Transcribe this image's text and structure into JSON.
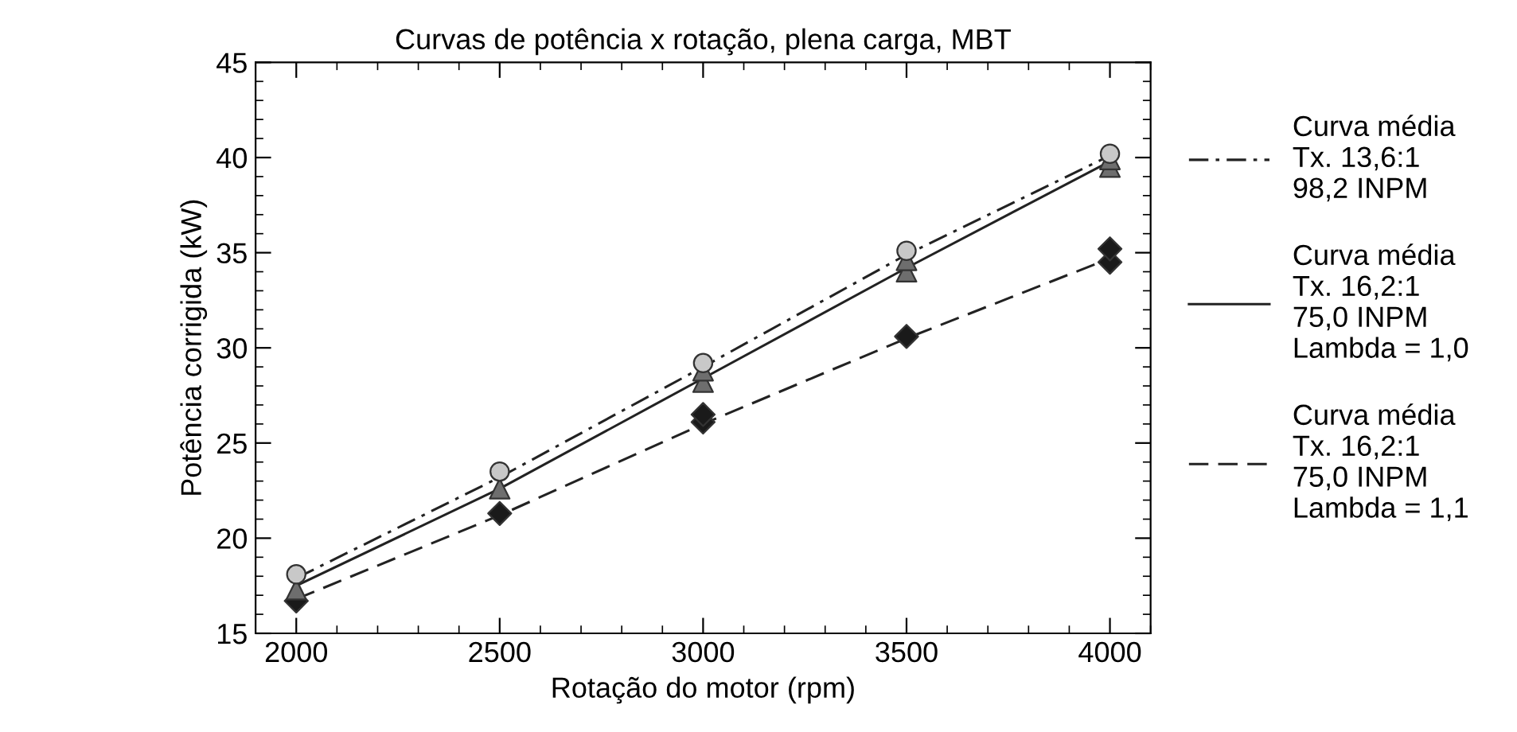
{
  "chart_data": {
    "type": "line",
    "title": "Curvas de potência x rotação, plena carga, MBT",
    "xlabel": "Rotação do motor (rpm)",
    "ylabel": "Potência corrigida (kW)",
    "xlim": [
      1900,
      4100
    ],
    "xticks": [
      2000,
      2500,
      3000,
      3500,
      4000
    ],
    "ylim": [
      15,
      45
    ],
    "yticks": [
      15,
      20,
      25,
      30,
      35,
      40,
      45
    ],
    "grid": false,
    "legend": "right",
    "series": [
      {
        "name": "Curva média\nTx. 13,6:1\n98,2 INPM",
        "color": "#222222",
        "line_style": "dashdot",
        "marker": "none",
        "x": [
          2000,
          2500,
          3000,
          3500,
          4000
        ],
        "values": [
          17.9,
          23.2,
          29.0,
          34.9,
          40.1
        ]
      },
      {
        "name": "Curva média\nTx. 16,2:1\n75,0 INPM\nLambda = 1,0",
        "color": "#222222",
        "line_style": "solid",
        "marker": "none",
        "x": [
          2000,
          2500,
          3000,
          3500,
          4000
        ],
        "values": [
          17.5,
          22.6,
          28.4,
          34.2,
          39.8
        ]
      },
      {
        "name": "Curva média\nTx. 16,2:1\n75,0 INPM\nLambda = 1,1",
        "color": "#222222",
        "line_style": "dashed",
        "marker": "none",
        "x": [
          2000,
          2500,
          3000,
          3500,
          4000
        ],
        "values": [
          16.8,
          21.2,
          26.0,
          30.5,
          34.7
        ]
      },
      {
        "type": "scatter",
        "color": "#c8c8c8",
        "marker": "circle",
        "x": [
          2000,
          2500,
          3000,
          3500,
          4000
        ],
        "values": [
          18.1,
          23.5,
          29.2,
          35.1,
          40.2
        ]
      },
      {
        "type": "scatter",
        "color": "#6e6e6e",
        "marker": "triangle",
        "x": [
          2000,
          2500,
          3000,
          3000,
          3500,
          3500,
          4000,
          4000
        ],
        "values": [
          17.3,
          22.6,
          28.2,
          28.8,
          34.0,
          34.6,
          39.5,
          39.9
        ]
      },
      {
        "type": "scatter",
        "color": "#1a1a1a",
        "marker": "diamond",
        "x": [
          2000,
          2500,
          3000,
          3000,
          3500,
          4000,
          4000
        ],
        "values": [
          16.7,
          21.3,
          26.1,
          26.5,
          30.6,
          34.5,
          35.2
        ]
      }
    ]
  }
}
